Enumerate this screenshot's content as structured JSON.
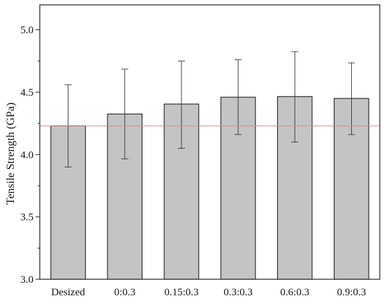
{
  "chart_data": {
    "type": "bar",
    "title": "",
    "xlabel": "",
    "ylabel": "Tensile Strength (GPa)",
    "categories": [
      "Desized",
      "0:0.3",
      "0.15:0.3",
      "0.3:0.3",
      "0.6:0.3",
      "0.9:0.3"
    ],
    "values": [
      4.23,
      4.325,
      4.405,
      4.46,
      4.465,
      4.45
    ],
    "error_low": [
      3.9,
      3.965,
      4.05,
      4.16,
      4.1,
      4.16
    ],
    "error_high": [
      4.56,
      4.685,
      4.75,
      4.76,
      4.825,
      4.735
    ],
    "ylim": [
      3.0,
      5.2
    ],
    "yticks": [
      "3.0",
      "3.5",
      "4.0",
      "4.5",
      "5.0"
    ],
    "reference_line": 4.23,
    "bar_color": "#c4c4c4",
    "reference_line_color": "#e08888",
    "grid": false,
    "legend": "none"
  }
}
